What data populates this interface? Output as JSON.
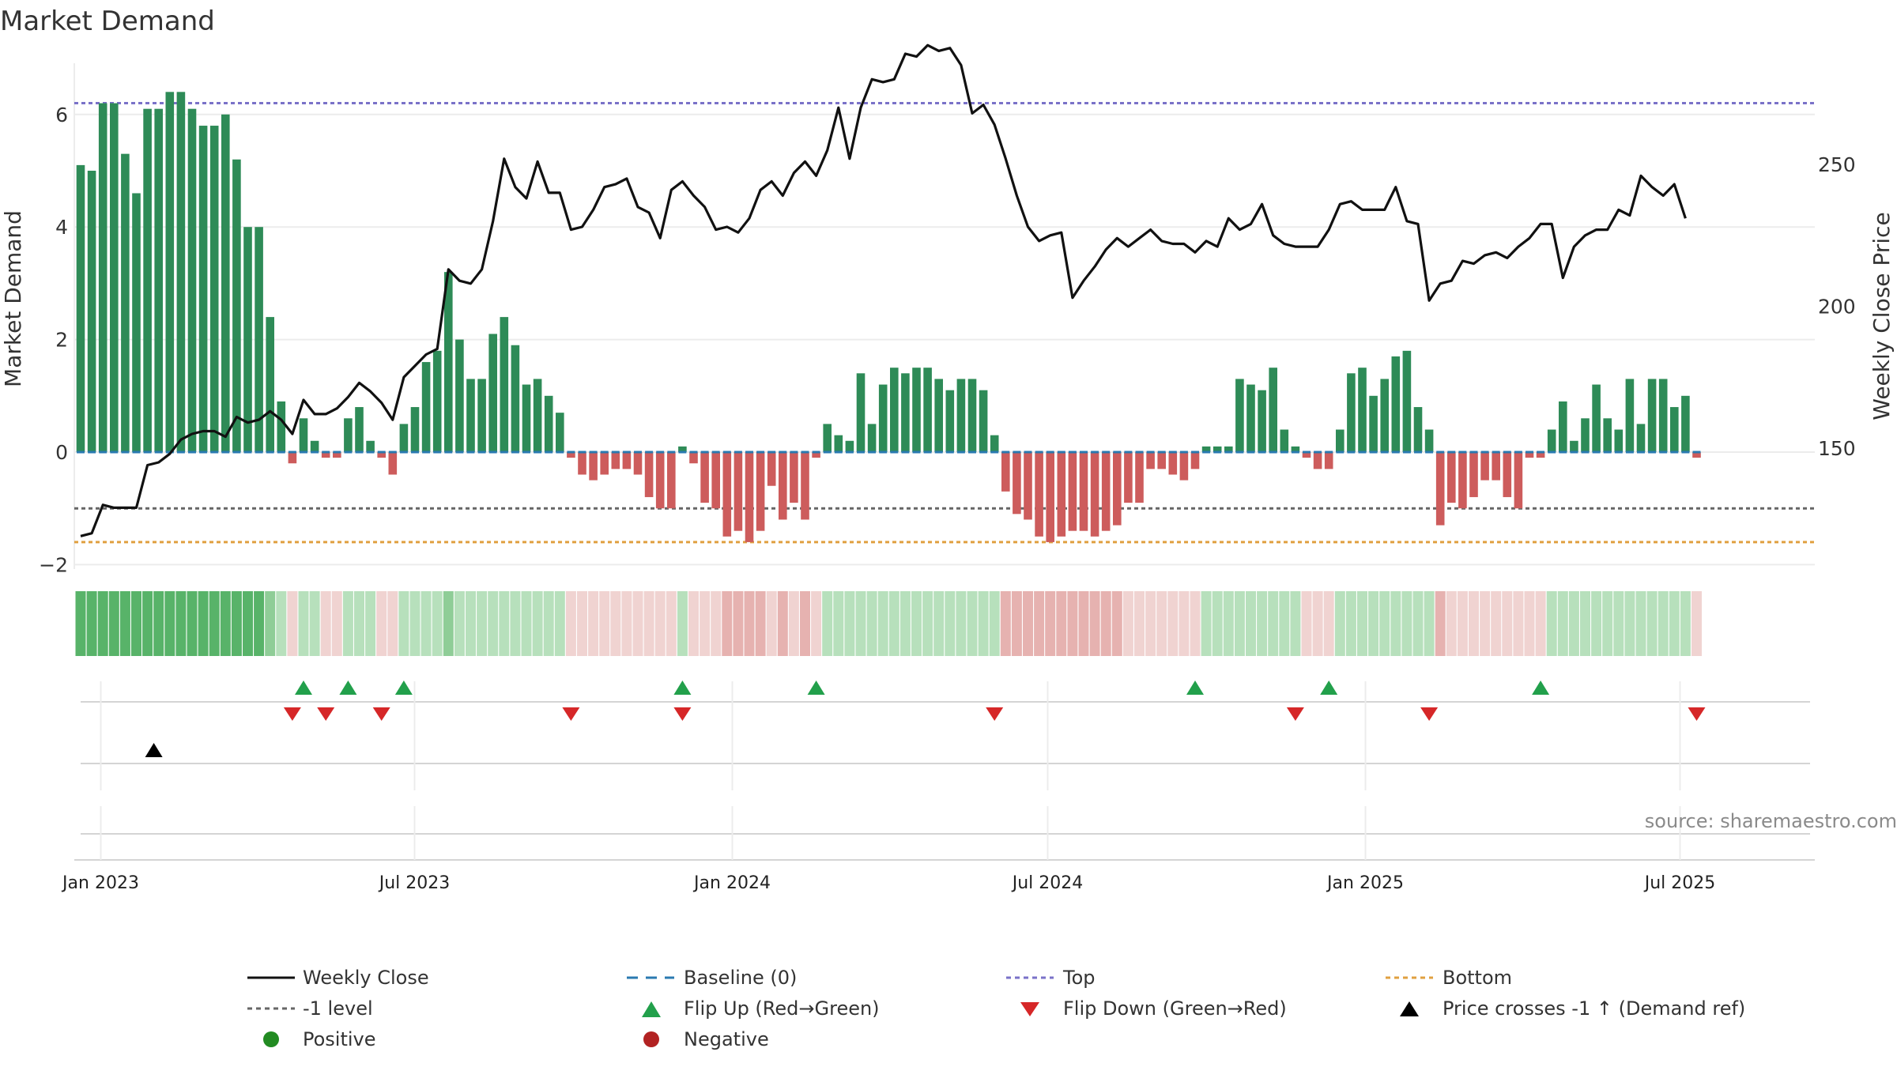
{
  "chart_data": {
    "type": "bar",
    "title": "Market Demand",
    "ylabel_left": "Market Demand",
    "ylabel_right": "Weekly Close Price",
    "source": "source: sharemaestro.com",
    "x_tick_labels": [
      "Jan 2023",
      "Jul 2023",
      "Jan 2024",
      "Jul 2024",
      "Jan 2025",
      "Jul 2025"
    ],
    "y_left_ticks": [
      "6",
      "4",
      "2",
      "0",
      "−2"
    ],
    "y_right_ticks": [
      "250",
      "200",
      "150"
    ],
    "ylim_left": [
      -2.2,
      6.9
    ],
    "ylim_right": [
      120,
      295
    ],
    "levels": {
      "top": 6.2,
      "bottom": -1.6,
      "minus_one": -1.0,
      "baseline": 0
    },
    "demand_values": [
      5.1,
      5.0,
      6.2,
      6.2,
      5.3,
      4.6,
      6.1,
      6.1,
      6.4,
      6.4,
      6.1,
      5.8,
      5.8,
      6.0,
      5.2,
      4.0,
      4.0,
      2.4,
      0.9,
      -0.2,
      0.6,
      0.2,
      -0.1,
      -0.1,
      0.6,
      0.8,
      0.2,
      -0.1,
      -0.4,
      0.5,
      0.8,
      1.6,
      1.8,
      3.2,
      2.0,
      1.3,
      1.3,
      2.1,
      2.4,
      1.9,
      1.2,
      1.3,
      1.0,
      0.7,
      -0.1,
      -0.4,
      -0.5,
      -0.4,
      -0.3,
      -0.3,
      -0.4,
      -0.8,
      -1.0,
      -1.0,
      0.1,
      -0.2,
      -0.9,
      -1.0,
      -1.5,
      -1.4,
      -1.6,
      -1.4,
      -0.6,
      -1.2,
      -0.9,
      -1.2,
      -0.1,
      0.5,
      0.3,
      0.2,
      1.4,
      0.5,
      1.2,
      1.5,
      1.4,
      1.5,
      1.5,
      1.3,
      1.1,
      1.3,
      1.3,
      1.1,
      0.3,
      -0.7,
      -1.1,
      -1.2,
      -1.5,
      -1.6,
      -1.5,
      -1.4,
      -1.4,
      -1.5,
      -1.4,
      -1.3,
      -0.9,
      -0.9,
      -0.3,
      -0.3,
      -0.4,
      -0.5,
      -0.3,
      0.1,
      0.1,
      0.1,
      1.3,
      1.2,
      1.1,
      1.5,
      0.4,
      0.1,
      -0.1,
      -0.3,
      -0.3,
      0.4,
      1.4,
      1.5,
      1.0,
      1.3,
      1.7,
      1.8,
      0.8,
      0.4,
      -1.3,
      -0.9,
      -1.0,
      -0.8,
      -0.5,
      -0.5,
      -0.8,
      -1.0,
      -0.1,
      -0.1,
      0.4,
      0.9,
      0.2,
      0.6,
      1.2,
      0.6,
      0.4,
      1.3,
      0.5,
      1.3,
      1.3,
      0.8,
      1.0,
      -0.1
    ],
    "price_values": [
      119,
      120,
      130,
      129,
      129,
      129,
      144,
      145,
      148,
      153,
      155,
      156,
      156,
      154,
      161,
      159,
      160,
      163,
      160,
      155,
      167,
      162,
      162,
      164,
      168,
      173,
      170,
      166,
      160,
      175,
      179,
      183,
      185,
      213,
      209,
      208,
      213,
      230,
      252,
      242,
      238,
      251,
      240,
      240,
      227,
      228,
      234,
      242,
      243,
      245,
      235,
      233,
      224,
      241,
      244,
      239,
      235,
      227,
      228,
      226,
      231,
      241,
      244,
      239,
      247,
      251,
      246,
      255,
      270,
      252,
      270,
      280,
      279,
      280,
      289,
      288,
      292,
      290,
      291,
      285,
      268,
      271,
      264,
      252,
      239,
      228,
      223,
      225,
      226,
      203,
      209,
      214,
      220,
      224,
      221,
      224,
      227,
      223,
      222,
      222,
      219,
      223,
      221,
      231,
      227,
      229,
      236,
      225,
      222,
      221,
      221,
      221,
      227,
      236,
      237,
      234,
      234,
      234,
      242,
      230,
      229,
      202,
      208,
      209,
      216,
      215,
      218,
      219,
      217,
      221,
      224,
      229,
      229,
      210,
      221,
      225,
      227,
      227,
      234,
      232,
      246,
      242,
      239,
      243,
      231
    ],
    "weeks": 146,
    "cells": [
      "green-strong",
      "green-strong",
      "green-strong",
      "green-strong",
      "green-strong",
      "green-strong",
      "green-strong",
      "green-strong",
      "green-strong",
      "green-strong",
      "green-strong",
      "green-strong",
      "green-strong",
      "green-strong",
      "green-strong",
      "green-strong",
      "green-strong",
      "green-med",
      "green-light",
      "red-light",
      "green-light",
      "green-light",
      "red-light",
      "red-light",
      "green-light",
      "green-light",
      "green-light",
      "red-light",
      "red-light",
      "green-light",
      "green-light",
      "green-light",
      "green-light",
      "green-med",
      "green-light",
      "green-light",
      "green-light",
      "green-light",
      "green-light",
      "green-light",
      "green-light",
      "green-light",
      "green-light",
      "green-light",
      "red-light",
      "red-light",
      "red-light",
      "red-light",
      "red-light",
      "red-light",
      "red-light",
      "red-light",
      "red-light",
      "red-light",
      "green-light",
      "red-light",
      "red-light",
      "red-light",
      "red-med",
      "red-med",
      "red-med",
      "red-med",
      "red-light",
      "red-med",
      "red-light",
      "red-med",
      "red-light",
      "green-light",
      "green-light",
      "green-light",
      "green-light",
      "green-light",
      "green-light",
      "green-light",
      "green-light",
      "green-light",
      "green-light",
      "green-light",
      "green-light",
      "green-light",
      "green-light",
      "green-light",
      "green-light",
      "red-med",
      "red-med",
      "red-med",
      "red-med",
      "red-med",
      "red-med",
      "red-med",
      "red-med",
      "red-med",
      "red-med",
      "red-med",
      "red-light",
      "red-light",
      "red-light",
      "red-light",
      "red-light",
      "red-light",
      "red-light",
      "green-light",
      "green-light",
      "green-light",
      "green-light",
      "green-light",
      "green-light",
      "green-light",
      "green-light",
      "green-light",
      "red-light",
      "red-light",
      "red-light",
      "green-light",
      "green-light",
      "green-light",
      "green-light",
      "green-light",
      "green-light",
      "green-light",
      "green-light",
      "green-light",
      "red-med",
      "red-light",
      "red-light",
      "red-light",
      "red-light",
      "red-light",
      "red-light",
      "red-light",
      "red-light",
      "red-light",
      "green-light",
      "green-light",
      "green-light",
      "green-light",
      "green-light",
      "green-light",
      "green-light",
      "green-light",
      "green-light",
      "green-light",
      "green-light",
      "green-light",
      "green-light",
      "red-light"
    ],
    "flip_up_weeks": [
      20,
      24,
      29,
      54,
      66,
      100,
      112,
      131
    ],
    "flip_down_weeks": [
      19,
      22,
      27,
      44,
      54,
      82,
      109,
      121,
      145
    ],
    "price_cross_weeks": [
      6
    ],
    "colors": {
      "positive_bar": "#2e8b57",
      "negative_bar": "#cd5c5c",
      "price_line": "#111111",
      "top": "#7a72c8",
      "bottom": "#e0a040",
      "minus_one": "#666666",
      "baseline": "#2a7ab0",
      "flip_up": "#22a04b",
      "flip_down": "#d62728",
      "cross": "#000000",
      "cell_green_strong": "#58b369",
      "cell_green_med": "#8fcd97",
      "cell_green_light": "#b7e0bc",
      "cell_red_med": "#e6b2b0",
      "cell_red_light": "#f0d3d1"
    }
  },
  "legend": {
    "weekly_close": "Weekly Close",
    "baseline": "Baseline (0)",
    "top": "Top",
    "bottom": "Bottom",
    "minus_one": "-1 level",
    "flip_up": "Flip Up (Red→Green)",
    "flip_down": "Flip Down (Green→Red)",
    "price_cross": "Price crosses -1 ↑ (Demand ref)",
    "positive": "Positive",
    "negative": "Negative"
  }
}
